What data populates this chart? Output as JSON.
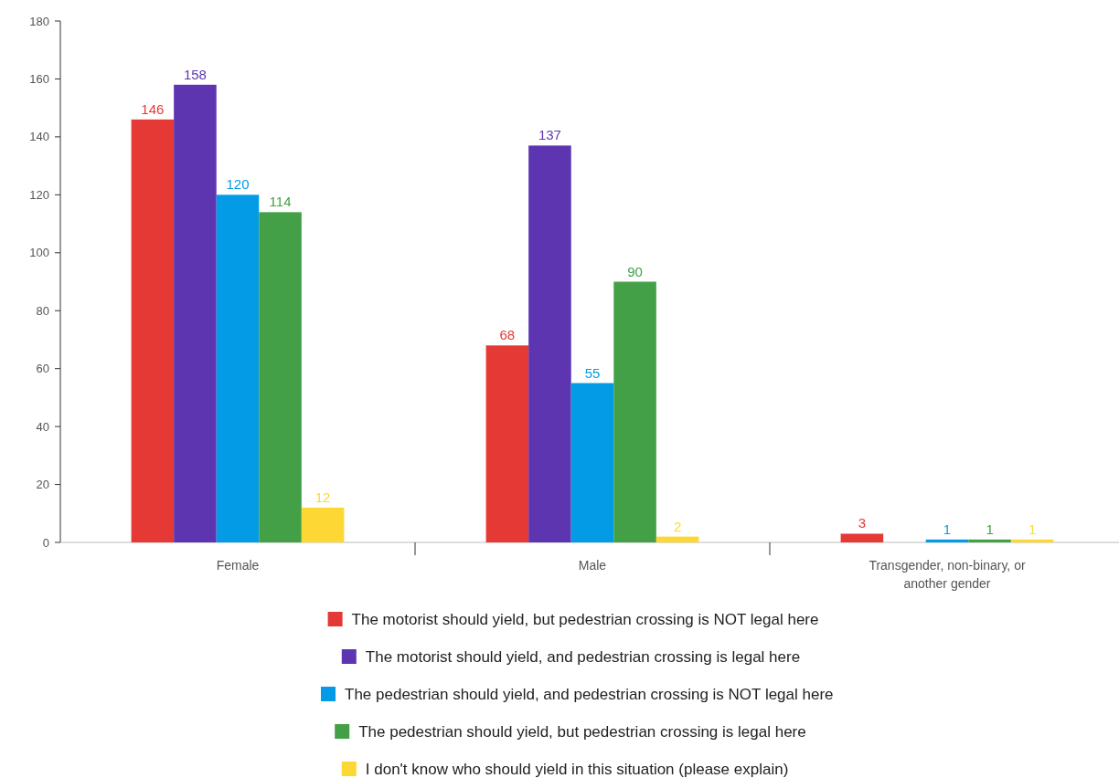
{
  "chart_data": {
    "type": "bar",
    "categories": [
      "Female",
      "Male",
      "Transgender, non-binary, or another gender"
    ],
    "series": [
      {
        "name": "The motorist should yield, but pedestrian crossing is NOT legal here",
        "color": "#e53935",
        "values": [
          146,
          68,
          3
        ]
      },
      {
        "name": "The motorist should yield, and pedestrian crossing is legal here",
        "color": "#5e35b1",
        "values": [
          158,
          137,
          null
        ]
      },
      {
        "name": "The pedestrian should yield, and pedestrian crossing is NOT legal here",
        "color": "#039be5",
        "values": [
          120,
          55,
          1
        ]
      },
      {
        "name": "The pedestrian should yield, but pedestrian crossing is legal here",
        "color": "#43a047",
        "values": [
          114,
          90,
          1
        ]
      },
      {
        "name": "I don't know who should yield in this situation (please explain)",
        "color": "#fdd835",
        "values": [
          12,
          2,
          1
        ]
      }
    ],
    "ylim": [
      0,
      180
    ],
    "yticks": [
      0,
      20,
      40,
      60,
      80,
      100,
      120,
      140,
      160,
      180
    ],
    "data_labels": true,
    "legend": "bottom"
  }
}
